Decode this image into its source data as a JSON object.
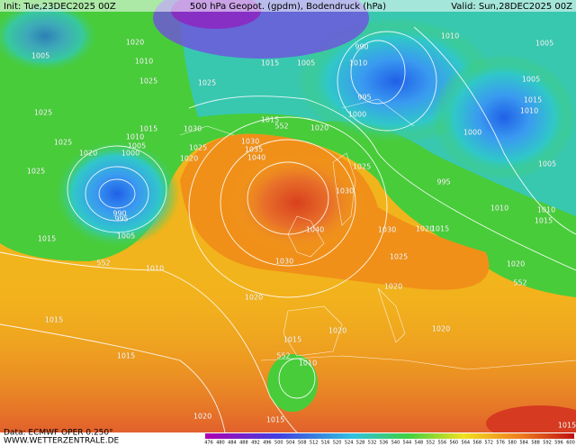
{
  "header": {
    "init": "Init: Tue,23DEC2025 00Z",
    "title": "500 hPa Geopot. (gpdm), Bodendruck (hPa)",
    "valid": "Valid: Sun,28DEC2025 00Z"
  },
  "footer": {
    "source": "Data: ECMWF OPER 0.250°",
    "site": "WWW.WETTERZENTRALE.DE"
  },
  "colorbar": {
    "ticks": [
      476,
      480,
      484,
      488,
      492,
      496,
      500,
      504,
      508,
      512,
      516,
      520,
      524,
      528,
      532,
      536,
      540,
      544,
      548,
      552,
      556,
      560,
      564,
      568,
      572,
      576,
      580,
      584,
      588,
      592,
      596,
      600
    ]
  },
  "map_labels": [
    "1020",
    "1005",
    "1010",
    "1025",
    "1025",
    "1025",
    "1025",
    "1020",
    "1015",
    "1010",
    "1005",
    "1000",
    "990",
    "995",
    "1015",
    "1005",
    "552",
    "1010",
    "1030",
    "1025",
    "1020",
    "1015",
    "1020",
    "552",
    "1030",
    "1035",
    "1040",
    "1040",
    "1030",
    "1005",
    "1015",
    "1010",
    "1000",
    "995",
    "990",
    "1010",
    "1005",
    "1005",
    "1015",
    "1010",
    "1000",
    "1005",
    "995",
    "1010",
    "1010",
    "1015",
    "1030",
    "1025",
    "1030",
    "1020",
    "1015",
    "1025",
    "1020",
    "1020",
    "1020",
    "1015",
    "1015",
    "1020",
    "1015",
    "1010",
    "552",
    "1020",
    "1015",
    "1015",
    "1020",
    "552",
    "1025"
  ]
}
